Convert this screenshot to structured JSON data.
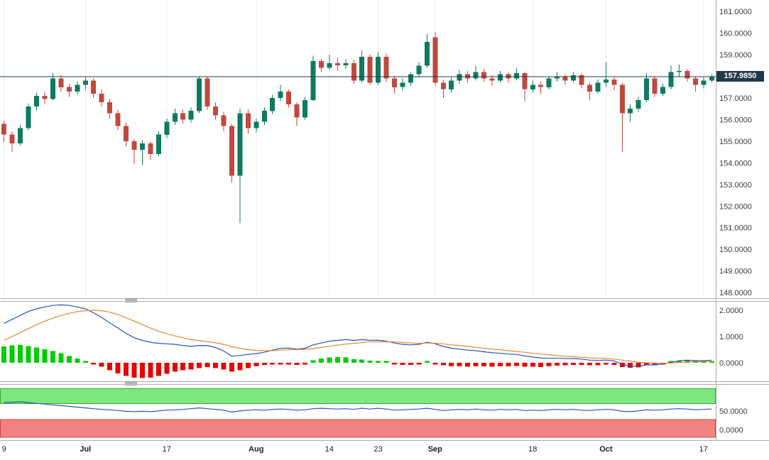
{
  "chart_data": {
    "type": "candlestick",
    "x_ticks": [
      {
        "label": "9",
        "index": 0,
        "bold": false
      },
      {
        "label": "Jul",
        "index": 10,
        "bold": true
      },
      {
        "label": "17",
        "index": 20,
        "bold": false
      },
      {
        "label": "Aug",
        "index": 31,
        "bold": true
      },
      {
        "label": "14",
        "index": 40,
        "bold": false
      },
      {
        "label": "23",
        "index": 46,
        "bold": false
      },
      {
        "label": "Sep",
        "index": 53,
        "bold": true
      },
      {
        "label": "18",
        "index": 65,
        "bold": false
      },
      {
        "label": "Oct",
        "index": 74,
        "bold": true
      },
      {
        "label": "17",
        "index": 86,
        "bold": false
      }
    ],
    "main": {
      "y_tick_labels": [
        "161.0000",
        "160.0000",
        "159.0000",
        "158.0000",
        "157.0000",
        "156.0000",
        "155.0000",
        "154.0000",
        "153.0000",
        "152.0000",
        "151.0000",
        "150.0000",
        "149.0000",
        "148.0000"
      ],
      "ylim": [
        147.74,
        161.53
      ],
      "current_price": 157.985,
      "current_price_label": "157.9850",
      "up_color": "#0e7a5f",
      "down_color": "#c0493e",
      "price_line_color": "#22384a",
      "grid_color": "#ededed",
      "ohlc": [
        [
          155.8,
          155.95,
          154.95,
          155.3
        ],
        [
          155.3,
          155.45,
          154.5,
          154.9
        ],
        [
          154.9,
          155.75,
          154.8,
          155.6
        ],
        [
          155.6,
          156.75,
          155.5,
          156.6
        ],
        [
          156.6,
          157.25,
          156.4,
          157.1
        ],
        [
          157.1,
          157.3,
          156.7,
          156.95
        ],
        [
          156.95,
          158.15,
          156.9,
          157.9
        ],
        [
          157.9,
          158.05,
          157.3,
          157.5
        ],
        [
          157.5,
          157.65,
          157.05,
          157.3
        ],
        [
          157.3,
          157.75,
          157.15,
          157.6
        ],
        [
          157.6,
          157.95,
          157.4,
          157.8
        ],
        [
          157.8,
          157.9,
          157.0,
          157.2
        ],
        [
          157.2,
          157.4,
          156.6,
          156.8
        ],
        [
          156.8,
          156.95,
          156.05,
          156.3
        ],
        [
          156.3,
          156.45,
          155.5,
          155.7
        ],
        [
          155.7,
          155.85,
          154.75,
          155.0
        ],
        [
          155.0,
          155.1,
          153.95,
          154.6
        ],
        [
          154.6,
          155.05,
          153.9,
          154.9
        ],
        [
          154.9,
          155.0,
          154.15,
          154.4
        ],
        [
          154.4,
          155.45,
          154.3,
          155.3
        ],
        [
          155.3,
          156.05,
          155.15,
          155.9
        ],
        [
          155.9,
          156.5,
          155.75,
          156.3
        ],
        [
          156.3,
          156.45,
          155.8,
          156.0
        ],
        [
          156.0,
          156.55,
          155.85,
          156.4
        ],
        [
          156.4,
          158.0,
          156.3,
          157.9
        ],
        [
          157.9,
          158.0,
          156.45,
          156.6
        ],
        [
          156.6,
          156.8,
          156.0,
          156.2
        ],
        [
          156.2,
          156.35,
          155.45,
          155.7
        ],
        [
          155.7,
          155.8,
          153.1,
          153.4
        ],
        [
          153.4,
          156.5,
          151.2,
          156.3
        ],
        [
          156.3,
          156.45,
          155.35,
          155.6
        ],
        [
          155.6,
          156.05,
          155.4,
          155.9
        ],
        [
          155.9,
          156.55,
          155.75,
          156.4
        ],
        [
          156.4,
          157.15,
          156.25,
          157.0
        ],
        [
          157.0,
          157.6,
          156.85,
          157.3
        ],
        [
          157.3,
          157.4,
          156.55,
          156.7
        ],
        [
          156.7,
          156.8,
          155.7,
          156.1
        ],
        [
          156.1,
          157.05,
          156.0,
          156.9
        ],
        [
          156.9,
          158.95,
          156.85,
          158.7
        ],
        [
          158.7,
          158.8,
          158.2,
          158.4
        ],
        [
          158.4,
          159.0,
          158.3,
          158.6
        ],
        [
          158.6,
          158.85,
          158.25,
          158.5
        ],
        [
          158.5,
          158.8,
          158.35,
          158.6
        ],
        [
          158.6,
          158.75,
          157.65,
          157.8
        ],
        [
          157.8,
          159.2,
          157.7,
          158.9
        ],
        [
          158.9,
          159.0,
          157.6,
          157.7
        ],
        [
          157.7,
          159.1,
          157.6,
          158.9
        ],
        [
          158.9,
          159.05,
          157.75,
          157.9
        ],
        [
          157.9,
          158.0,
          157.2,
          157.5
        ],
        [
          157.5,
          157.9,
          157.35,
          157.7
        ],
        [
          157.7,
          158.2,
          157.55,
          158.1
        ],
        [
          158.1,
          158.65,
          157.95,
          158.5
        ],
        [
          158.5,
          159.95,
          158.4,
          159.6
        ],
        [
          159.8,
          160.05,
          157.55,
          157.7
        ],
        [
          157.7,
          157.85,
          157.0,
          157.4
        ],
        [
          157.4,
          157.95,
          157.25,
          157.8
        ],
        [
          157.8,
          158.3,
          157.65,
          158.1
        ],
        [
          158.1,
          158.25,
          157.7,
          157.9
        ],
        [
          157.9,
          158.5,
          157.8,
          158.2
        ],
        [
          158.2,
          158.35,
          157.75,
          157.9
        ],
        [
          157.9,
          158.05,
          157.55,
          157.8
        ],
        [
          157.8,
          158.25,
          157.7,
          158.1
        ],
        [
          158.1,
          158.2,
          157.7,
          157.9
        ],
        [
          157.9,
          158.4,
          157.8,
          158.15
        ],
        [
          158.15,
          158.2,
          156.85,
          157.4
        ],
        [
          157.4,
          157.8,
          157.25,
          157.6
        ],
        [
          157.6,
          157.75,
          157.2,
          157.5
        ],
        [
          157.5,
          158.0,
          157.4,
          157.9
        ],
        [
          157.9,
          158.2,
          157.75,
          158.0
        ],
        [
          158.0,
          158.1,
          157.6,
          157.8
        ],
        [
          157.8,
          158.2,
          157.7,
          158.05
        ],
        [
          158.05,
          158.15,
          157.45,
          157.6
        ],
        [
          157.6,
          157.7,
          156.9,
          157.3
        ],
        [
          157.3,
          157.85,
          157.2,
          157.7
        ],
        [
          157.7,
          158.65,
          157.5,
          157.85
        ],
        [
          157.85,
          157.95,
          157.35,
          157.6
        ],
        [
          157.6,
          157.7,
          154.5,
          156.3
        ],
        [
          156.3,
          156.7,
          155.9,
          156.5
        ],
        [
          156.5,
          157.05,
          156.35,
          156.9
        ],
        [
          156.9,
          158.15,
          156.8,
          157.9
        ],
        [
          157.9,
          158.0,
          157.05,
          157.2
        ],
        [
          157.2,
          157.65,
          157.1,
          157.5
        ],
        [
          157.5,
          158.5,
          157.4,
          158.2
        ],
        [
          158.2,
          158.55,
          158.0,
          158.25
        ],
        [
          158.25,
          158.35,
          157.75,
          157.9
        ],
        [
          157.9,
          158.0,
          157.3,
          157.6
        ],
        [
          157.6,
          157.95,
          157.45,
          157.8
        ],
        [
          157.8,
          158.1,
          157.7,
          157.99
        ]
      ]
    },
    "macd": {
      "y_tick_labels": [
        "2.0000",
        "1.0000",
        "0.0000"
      ],
      "ylim": [
        -0.7,
        2.32
      ],
      "hist_up_color": "#00cc00",
      "hist_down_color": "#e60000",
      "macd_color": "#2853c3",
      "signal_color": "#e8882e",
      "hist": [
        0.62,
        0.66,
        0.68,
        0.64,
        0.58,
        0.52,
        0.45,
        0.36,
        0.26,
        0.16,
        0.07,
        -0.04,
        -0.15,
        -0.28,
        -0.4,
        -0.5,
        -0.56,
        -0.58,
        -0.56,
        -0.5,
        -0.42,
        -0.34,
        -0.28,
        -0.26,
        -0.2,
        -0.16,
        -0.2,
        -0.26,
        -0.34,
        -0.28,
        -0.2,
        -0.14,
        -0.08,
        -0.05,
        -0.04,
        -0.06,
        -0.08,
        -0.04,
        0.1,
        0.16,
        0.2,
        0.22,
        0.2,
        0.14,
        0.12,
        0.08,
        0.07,
        0.03,
        -0.04,
        -0.08,
        -0.08,
        -0.06,
        0.02,
        -0.03,
        -0.1,
        -0.14,
        -0.14,
        -0.15,
        -0.13,
        -0.14,
        -0.15,
        -0.14,
        -0.14,
        -0.12,
        -0.15,
        -0.15,
        -0.16,
        -0.14,
        -0.11,
        -0.1,
        -0.08,
        -0.08,
        -0.1,
        -0.09,
        -0.07,
        -0.08,
        -0.16,
        -0.19,
        -0.17,
        -0.09,
        -0.07,
        -0.04,
        0.03,
        0.07,
        0.08,
        0.05,
        0.04,
        0.06
      ],
      "macd_line": [
        1.5,
        1.65,
        1.8,
        1.95,
        2.05,
        2.12,
        2.18,
        2.2,
        2.18,
        2.12,
        2.05,
        1.9,
        1.72,
        1.52,
        1.32,
        1.12,
        0.95,
        0.85,
        0.78,
        0.74,
        0.72,
        0.7,
        0.66,
        0.62,
        0.66,
        0.65,
        0.58,
        0.45,
        0.25,
        0.28,
        0.32,
        0.35,
        0.4,
        0.48,
        0.55,
        0.56,
        0.52,
        0.55,
        0.68,
        0.75,
        0.82,
        0.85,
        0.88,
        0.85,
        0.88,
        0.85,
        0.86,
        0.82,
        0.75,
        0.7,
        0.68,
        0.7,
        0.78,
        0.72,
        0.62,
        0.55,
        0.52,
        0.48,
        0.46,
        0.42,
        0.38,
        0.36,
        0.33,
        0.32,
        0.26,
        0.22,
        0.18,
        0.17,
        0.17,
        0.16,
        0.16,
        0.14,
        0.1,
        0.09,
        0.1,
        0.07,
        -0.05,
        -0.12,
        -0.14,
        -0.08,
        -0.08,
        -0.05,
        0.02,
        0.08,
        0.1,
        0.08,
        0.08,
        0.1
      ],
      "signal_line": [
        0.85,
        1.0,
        1.15,
        1.3,
        1.45,
        1.58,
        1.7,
        1.8,
        1.88,
        1.94,
        1.98,
        2.0,
        1.98,
        1.92,
        1.83,
        1.71,
        1.58,
        1.45,
        1.32,
        1.2,
        1.1,
        1.02,
        0.95,
        0.88,
        0.84,
        0.8,
        0.76,
        0.7,
        0.61,
        0.55,
        0.5,
        0.47,
        0.46,
        0.46,
        0.48,
        0.5,
        0.5,
        0.51,
        0.54,
        0.58,
        0.63,
        0.67,
        0.71,
        0.74,
        0.77,
        0.79,
        0.8,
        0.8,
        0.79,
        0.77,
        0.75,
        0.74,
        0.75,
        0.74,
        0.72,
        0.68,
        0.65,
        0.62,
        0.58,
        0.55,
        0.52,
        0.49,
        0.46,
        0.43,
        0.4,
        0.36,
        0.33,
        0.3,
        0.27,
        0.25,
        0.23,
        0.21,
        0.19,
        0.17,
        0.16,
        0.14,
        0.1,
        0.06,
        0.02,
        0.0,
        -0.02,
        -0.02,
        -0.01,
        0.01,
        0.03,
        0.04,
        0.05,
        0.06
      ]
    },
    "oscillator": {
      "y_tick_labels": [
        "50.0000",
        "0.0000"
      ],
      "ylim": [
        -27,
        119
      ],
      "upper_band": [
        69,
        109
      ],
      "lower_band": [
        -19,
        27
      ],
      "band_up_fill": "#7de87d",
      "band_up_border": "#35aa35",
      "band_down_fill": "#f28181",
      "band_down_border": "#cc4444",
      "line_color": "#2853c3",
      "values": [
        72,
        73,
        74,
        72,
        70,
        68,
        66,
        64,
        62,
        60,
        58,
        56,
        54,
        53,
        51,
        49,
        48,
        49,
        48,
        50,
        52,
        53,
        54,
        56,
        58,
        56,
        54,
        52,
        47,
        50,
        52,
        53,
        52,
        54,
        55,
        54,
        52,
        53,
        56,
        57,
        56,
        55,
        56,
        54,
        57,
        55,
        57,
        55,
        52,
        53,
        54,
        55,
        57,
        54,
        51,
        53,
        54,
        53,
        55,
        53,
        52,
        54,
        53,
        54,
        51,
        52,
        51,
        53,
        54,
        53,
        54,
        52,
        51,
        53,
        54,
        53,
        49,
        48,
        50,
        53,
        52,
        53,
        55,
        56,
        55,
        53,
        54,
        55
      ]
    }
  }
}
